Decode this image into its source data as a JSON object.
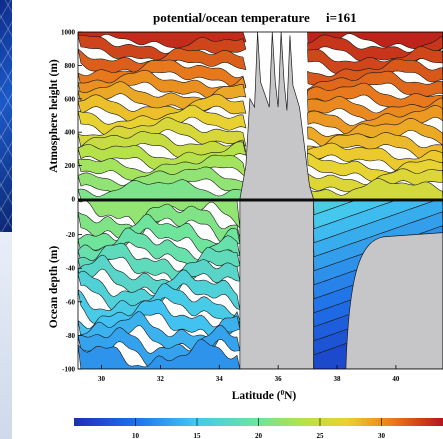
{
  "colors": {
    "land": "#c6c6c8",
    "contour": "#1a1a1a",
    "background_panel": "#1c59c7"
  },
  "chart_data": {
    "type": "heatmap",
    "title": "potential/ocean temperature     i=161",
    "xlabel": "Latitude (°N)",
    "xlabel_parts": [
      "Latitude (",
      "0",
      "N)"
    ],
    "x_range": [
      29.2,
      41.6
    ],
    "x_ticks": [
      30,
      32,
      34,
      36,
      38,
      40
    ],
    "land_intervals": [
      [
        34.7,
        37.2
      ]
    ],
    "panels": [
      {
        "name": "atmosphere",
        "ylabel": "Atmosphere height (m)",
        "ylim": [
          0,
          1000
        ],
        "y_ticks": [
          0,
          200,
          400,
          600,
          800,
          1000
        ],
        "mountain_peaks": [
          {
            "lat": 35.3,
            "height": 1000
          },
          {
            "lat": 35.8,
            "height": 1000
          },
          {
            "lat": 36.1,
            "height": 1000
          },
          {
            "lat": 36.4,
            "height": 980
          }
        ]
      },
      {
        "name": "ocean",
        "ylabel": "Ocean depth (m)",
        "ylim": [
          -100,
          0
        ],
        "y_ticks": [
          -100,
          -80,
          -60,
          -40,
          -20,
          0
        ],
        "shelf_lat_at_bottom": 38.3,
        "shelf_top_depth": -20
      }
    ],
    "colorbar": {
      "range": [
        5,
        35
      ],
      "ticks": [
        10,
        15,
        20,
        25,
        30
      ]
    }
  }
}
